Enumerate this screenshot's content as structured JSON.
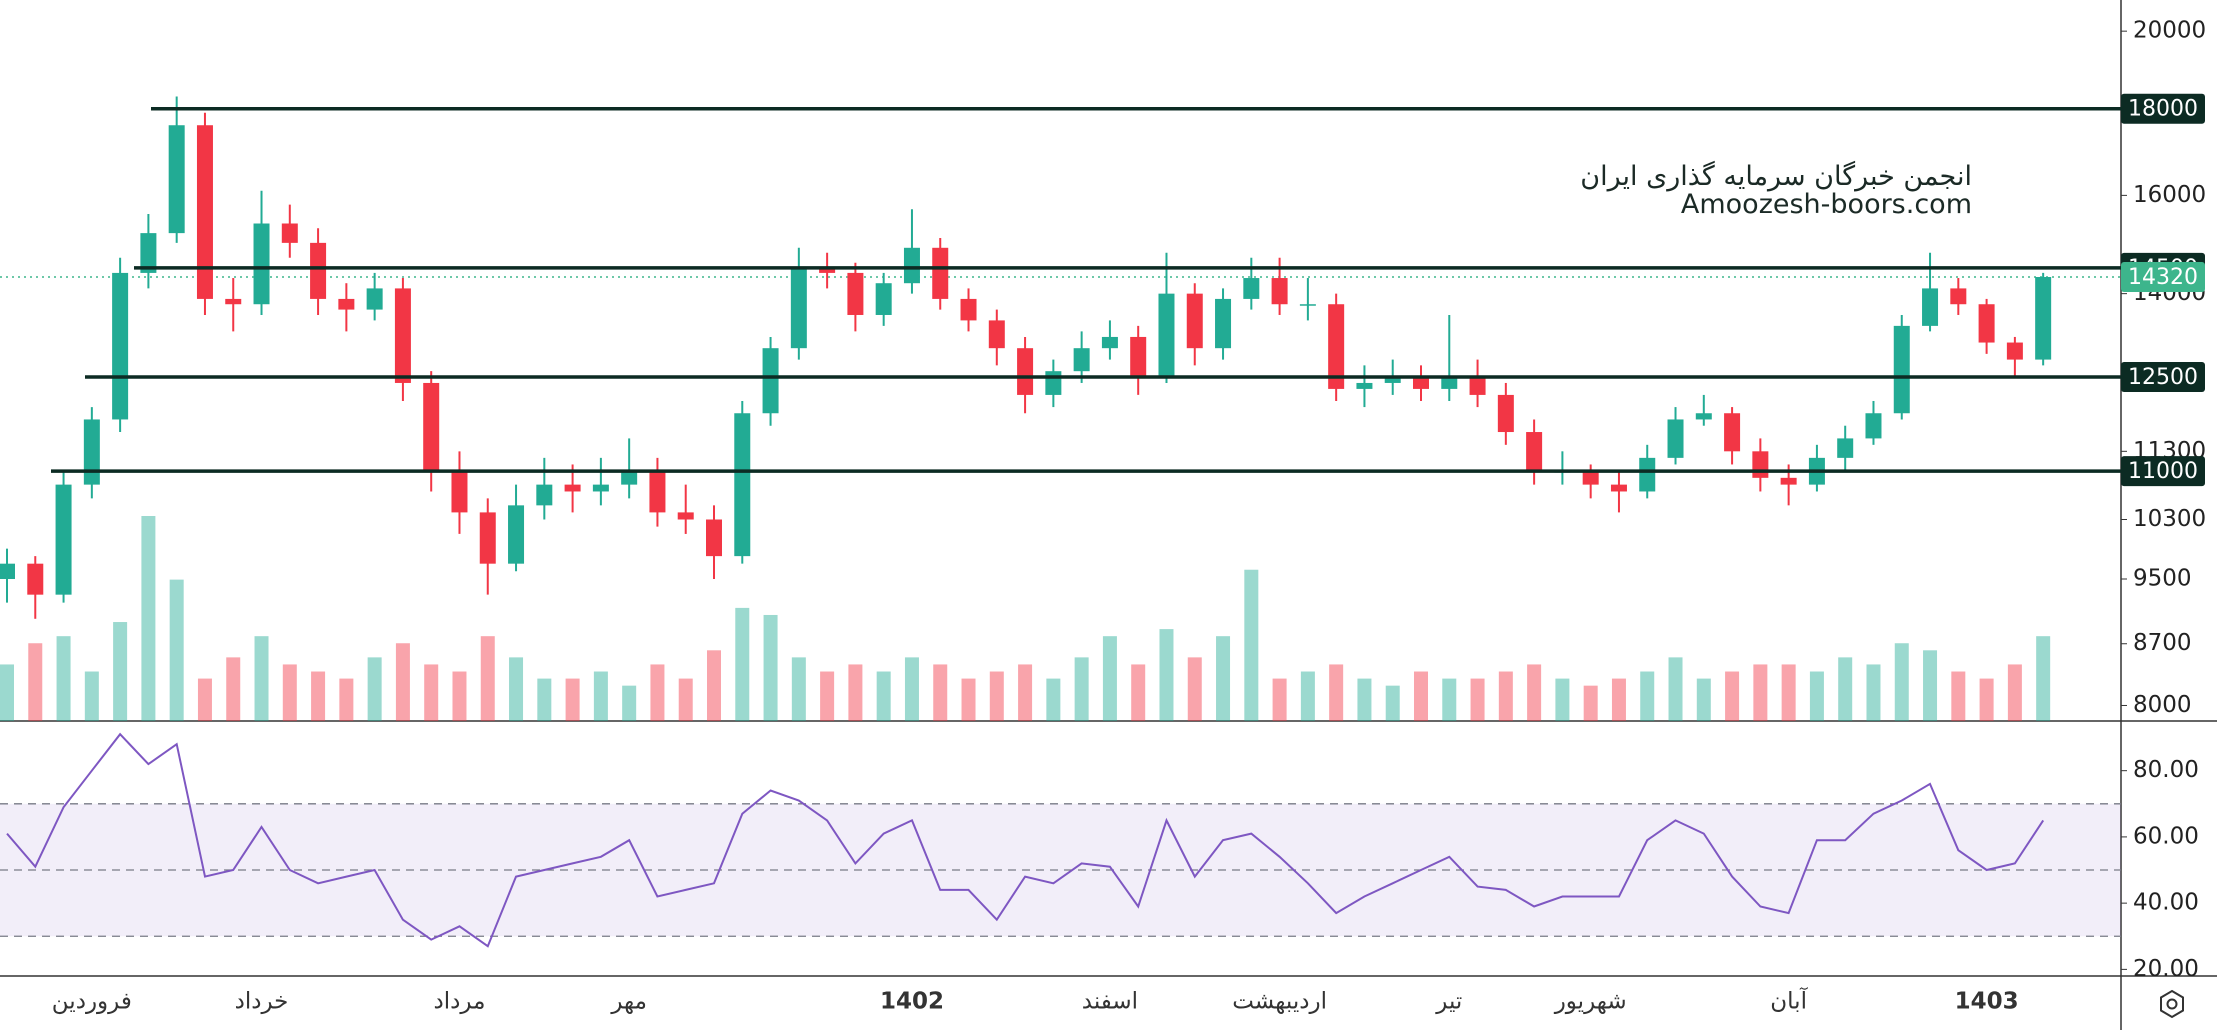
{
  "chart_data": {
    "type": "candlestick",
    "log_scale": true,
    "ylim": [
      7833,
      20865
    ],
    "yticks": [
      8000,
      8700,
      9500,
      10300,
      11300,
      14000,
      16000,
      20000
    ],
    "up_color": "#22ab94",
    "down_color": "#f23645",
    "categories": [
      null,
      null,
      null,
      "فروردین",
      null,
      null,
      null,
      null,
      null,
      "خرداد",
      null,
      null,
      null,
      null,
      null,
      null,
      "مرداد",
      null,
      null,
      null,
      null,
      null,
      "مهر",
      null,
      null,
      null,
      null,
      null,
      null,
      null,
      null,
      null,
      "1402",
      null,
      null,
      null,
      null,
      null,
      null,
      "اسفند",
      null,
      null,
      null,
      null,
      null,
      "اردیبهشت",
      null,
      null,
      null,
      null,
      null,
      "تیر",
      null,
      null,
      null,
      null,
      "شهریور",
      null,
      null,
      null,
      null,
      null,
      null,
      "آبان",
      null,
      null,
      null,
      null,
      null,
      null,
      "1403",
      null,
      null
    ],
    "open": [
      9500,
      9700,
      9300,
      10800,
      11800,
      14400,
      15200,
      17600,
      13900,
      13800,
      15400,
      15000,
      13900,
      13700,
      14100,
      12400,
      11000,
      10400,
      9700,
      10500,
      10800,
      10700,
      10800,
      11000,
      10400,
      10300,
      9800,
      11900,
      13000,
      14500,
      14400,
      13600,
      14200,
      14900,
      13900,
      13500,
      13000,
      12200,
      12600,
      13000,
      13200,
      12500,
      14000,
      13000,
      13900,
      14300,
      13800,
      13800,
      12300,
      12400,
      12500,
      12300,
      12500,
      12200,
      11600,
      11000,
      11000,
      10800,
      10700,
      11200,
      11800,
      11900,
      11300,
      10900,
      10800,
      11200,
      11500,
      11900,
      13400,
      14100,
      13800,
      13100,
      12800
    ],
    "high": [
      9900,
      9800,
      11000,
      12000,
      14700,
      15600,
      18300,
      17900,
      14300,
      16100,
      15800,
      15300,
      14200,
      14400,
      14300,
      12600,
      11300,
      10600,
      10800,
      11200,
      11100,
      11200,
      11500,
      11200,
      10800,
      10500,
      12100,
      13200,
      14900,
      14800,
      14600,
      14400,
      15700,
      15100,
      14100,
      13700,
      13200,
      12800,
      13300,
      13500,
      13400,
      14800,
      14200,
      14100,
      14700,
      14700,
      14300,
      14000,
      12700,
      12800,
      12700,
      13600,
      12800,
      12400,
      11800,
      11300,
      11100,
      11000,
      11400,
      12000,
      12200,
      12000,
      11500,
      11100,
      11400,
      11700,
      12100,
      13600,
      14800,
      14300,
      13900,
      13200,
      14400
    ],
    "low": [
      9200,
      9000,
      9200,
      10600,
      11600,
      14100,
      15000,
      13600,
      13300,
      13600,
      14700,
      13600,
      13300,
      13500,
      12100,
      10700,
      10100,
      9300,
      9600,
      10300,
      10400,
      10500,
      10600,
      10200,
      10100,
      9500,
      9700,
      11700,
      12800,
      14100,
      13300,
      13400,
      14000,
      13700,
      13300,
      12700,
      11900,
      12000,
      12400,
      12800,
      12200,
      12400,
      12700,
      12800,
      13700,
      13600,
      13500,
      12100,
      12000,
      12200,
      12100,
      12100,
      12000,
      11400,
      10800,
      10800,
      10600,
      10400,
      10600,
      11100,
      11700,
      11100,
      10700,
      10500,
      10700,
      11000,
      11400,
      11800,
      13300,
      13600,
      12900,
      12500,
      12700
    ],
    "close": [
      9700,
      9300,
      10800,
      11800,
      14400,
      15200,
      17600,
      13900,
      13800,
      15400,
      15000,
      13900,
      13700,
      14100,
      12400,
      11000,
      10400,
      9700,
      10500,
      10800,
      10700,
      10800,
      11000,
      10400,
      10300,
      9800,
      11900,
      13000,
      14500,
      14400,
      13600,
      14200,
      14900,
      13900,
      13500,
      13000,
      12200,
      12600,
      13000,
      13200,
      12500,
      14000,
      13000,
      13900,
      14300,
      13800,
      13800,
      12300,
      12400,
      12500,
      12300,
      12500,
      12200,
      11600,
      11000,
      11000,
      10800,
      10700,
      11200,
      11800,
      11900,
      11300,
      10900,
      10800,
      11200,
      11500,
      11900,
      13400,
      14100,
      13800,
      13100,
      12800,
      14320
    ],
    "levels": {
      "values": [
        18000,
        14500,
        12500,
        11000
      ],
      "color": "#0c2b23"
    },
    "last_price": {
      "value": 14320,
      "color": "#3db58c"
    },
    "volume": {
      "values": [
        40,
        55,
        60,
        35,
        70,
        145,
        100,
        30,
        45,
        60,
        40,
        35,
        30,
        45,
        55,
        40,
        35,
        60,
        45,
        30,
        30,
        35,
        25,
        40,
        30,
        50,
        80,
        75,
        45,
        35,
        40,
        35,
        45,
        40,
        30,
        35,
        40,
        30,
        45,
        60,
        40,
        65,
        45,
        60,
        107,
        30,
        35,
        40,
        30,
        25,
        35,
        30,
        30,
        35,
        40,
        30,
        25,
        30,
        35,
        45,
        30,
        35,
        40,
        40,
        35,
        45,
        40,
        55,
        50,
        35,
        30,
        40,
        60
      ]
    },
    "rsi": {
      "color": "#7e57c2",
      "ylim": [
        18,
        95
      ],
      "yticks": [
        {
          "value": 20,
          "label": "20.00"
        },
        {
          "value": 40,
          "label": "40.00"
        },
        {
          "value": 60,
          "label": "60.00"
        },
        {
          "value": 80,
          "label": "80.00"
        }
      ],
      "levels": [
        30,
        50,
        70
      ],
      "values": [
        61,
        51,
        69,
        80,
        91,
        82,
        88,
        48,
        50,
        63,
        50,
        46,
        48,
        50,
        35,
        29,
        33,
        27,
        48,
        50,
        52,
        54,
        59,
        42,
        44,
        46,
        67,
        74,
        71,
        65,
        52,
        61,
        65,
        44,
        44,
        35,
        48,
        46,
        52,
        51,
        39,
        65,
        48,
        59,
        61,
        54,
        46,
        37,
        42,
        46,
        50,
        54,
        45,
        44,
        39,
        42,
        42,
        42,
        59,
        65,
        61,
        48,
        39,
        37,
        59,
        59,
        67,
        71,
        76,
        56,
        50,
        52,
        65
      ]
    },
    "watermark": [
      "انجمن خبرگان سرمایه گذاری ایران",
      "Amoozesh-boors.com"
    ]
  }
}
